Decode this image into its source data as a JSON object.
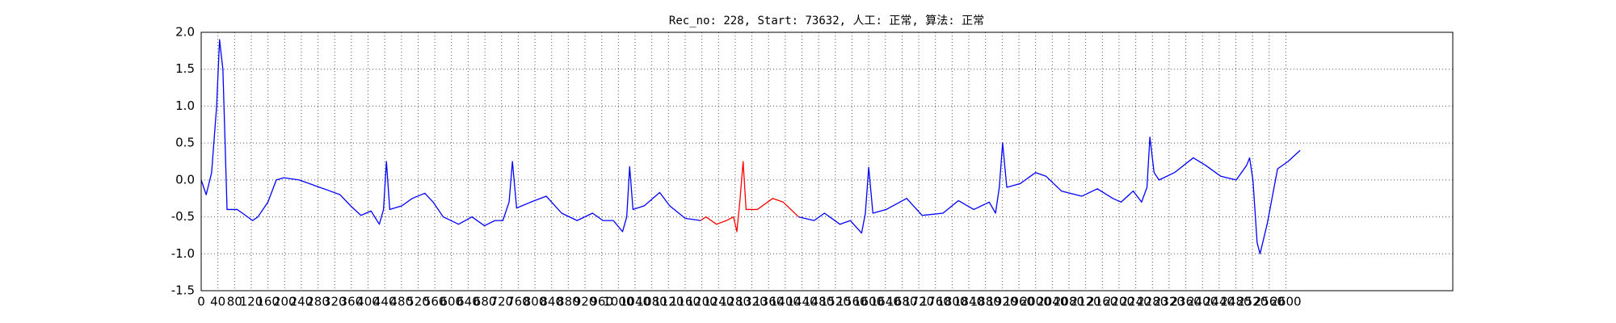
{
  "chart_data": {
    "type": "line",
    "title": "Rec_no: 228, Start: 73632, 人工: 正常, 算法: 正常",
    "x": [
      0,
      12,
      25,
      37,
      44,
      52,
      62,
      86,
      99,
      123,
      136,
      160,
      180,
      198,
      235,
      284,
      309,
      333,
      358,
      383,
      407,
      427,
      437,
      444,
      452,
      481,
      506,
      536,
      556,
      580,
      617,
      649,
      679,
      704,
      723,
      738,
      746,
      756,
      790,
      827,
      864,
      901,
      938,
      963,
      988,
      1010,
      1020,
      1027,
      1035,
      1062,
      1099,
      1123,
      1160,
      1197,
      1210,
      1235,
      1259,
      1276,
      1284,
      1291,
      1299,
      1306,
      1333,
      1370,
      1395,
      1432,
      1469,
      1494,
      1531,
      1556,
      1583,
      1592,
      1600,
      1610,
      1642,
      1691,
      1728,
      1778,
      1815,
      1852,
      1889,
      1904,
      1913,
      1921,
      1931,
      1963,
      2000,
      2025,
      2062,
      2111,
      2148,
      2185,
      2205,
      2234,
      2254,
      2267,
      2274,
      2284,
      2296,
      2333,
      2378,
      2407,
      2444,
      2481,
      2506,
      2513,
      2521,
      2531,
      2538,
      2555,
      2580,
      2605,
      2634
    ],
    "series": [
      {
        "color": "#0000ff",
        "values": [
          0,
          -0.2,
          0.1,
          1.0,
          1.9,
          1.5,
          -0.4,
          -0.4,
          -0.45,
          -0.55,
          -0.5,
          -0.3,
          0.0,
          0.03,
          0.0,
          -0.1,
          -0.15,
          -0.2,
          -0.35,
          -0.48,
          -0.42,
          -0.6,
          -0.4,
          0.25,
          -0.4,
          -0.35,
          -0.25,
          -0.18,
          -0.3,
          -0.5,
          -0.6,
          -0.5,
          -0.62,
          -0.55,
          -0.55,
          -0.3,
          0.25,
          -0.38,
          -0.3,
          -0.22,
          -0.45,
          -0.55,
          -0.45,
          -0.55,
          -0.55,
          -0.7,
          -0.5,
          0.18,
          -0.4,
          -0.35,
          -0.17,
          -0.35,
          -0.52,
          -0.55,
          null,
          null,
          null,
          null,
          null,
          null,
          null,
          null,
          null,
          null,
          null,
          -0.5,
          -0.55,
          -0.45,
          -0.6,
          -0.55,
          -0.72,
          -0.45,
          0.17,
          -0.45,
          -0.4,
          -0.25,
          -0.48,
          -0.45,
          -0.28,
          -0.4,
          -0.3,
          -0.45,
          -0.1,
          0.5,
          -0.1,
          -0.05,
          0.1,
          0.05,
          -0.15,
          -0.22,
          -0.12,
          -0.25,
          -0.3,
          -0.15,
          -0.3,
          -0.1,
          0.58,
          0.1,
          0.0,
          0.1,
          0.3,
          0.2,
          0.05,
          0.0,
          0.2,
          0.3,
          0.0,
          -0.85,
          -1.0,
          -0.6,
          0.15,
          0.25,
          0.4
        ]
      },
      {
        "color": "#ff0000",
        "values": [
          null,
          null,
          null,
          null,
          null,
          null,
          null,
          null,
          null,
          null,
          null,
          null,
          null,
          null,
          null,
          null,
          null,
          null,
          null,
          null,
          null,
          null,
          null,
          null,
          null,
          null,
          null,
          null,
          null,
          null,
          null,
          null,
          null,
          null,
          null,
          null,
          null,
          null,
          null,
          null,
          null,
          null,
          null,
          null,
          null,
          null,
          null,
          null,
          null,
          null,
          null,
          null,
          null,
          -0.55,
          -0.5,
          -0.6,
          -0.55,
          -0.5,
          -0.7,
          -0.3,
          0.25,
          -0.4,
          -0.4,
          -0.25,
          -0.3,
          -0.5,
          null,
          null,
          null,
          null,
          null,
          null,
          null,
          null,
          null,
          null,
          null,
          null,
          null,
          null,
          null,
          null,
          null,
          null,
          null,
          null,
          null,
          null,
          null,
          null,
          null,
          null,
          null,
          null,
          null,
          null,
          null,
          null,
          null,
          null,
          null,
          null,
          null,
          null,
          null,
          null,
          null,
          null,
          null,
          null,
          null,
          null,
          null
        ]
      }
    ],
    "xlim": [
      0,
      3000
    ],
    "xticks": [
      0,
      40,
      80,
      120,
      160,
      200,
      240,
      280,
      320,
      360,
      400,
      440,
      480,
      520,
      560,
      600,
      640,
      680,
      720,
      760,
      800,
      840,
      880,
      920,
      960,
      1000,
      1040,
      1080,
      1120,
      1160,
      1200,
      1240,
      1280,
      1320,
      1360,
      1400,
      1440,
      1480,
      1520,
      1560,
      1600,
      1640,
      1680,
      1720,
      1760,
      1800,
      1840,
      1880,
      1920,
      1960,
      2000,
      2040,
      2080,
      2120,
      2160,
      2200,
      2240,
      2280,
      2320,
      2360,
      2400,
      2440,
      2480,
      2520,
      2560,
      2600
    ],
    "ylim": [
      -1.5,
      2.0
    ],
    "yticks": [
      -1.5,
      {
        "value": -1.0,
        "label": "-1.0"
      },
      -0.5,
      {
        "value": 0.0,
        "label": "0.0"
      },
      0.5,
      {
        "value": 1.0,
        "label": "1.0"
      },
      1.5,
      {
        "value": 2.0,
        "label": "2.0"
      }
    ],
    "grid": true
  }
}
